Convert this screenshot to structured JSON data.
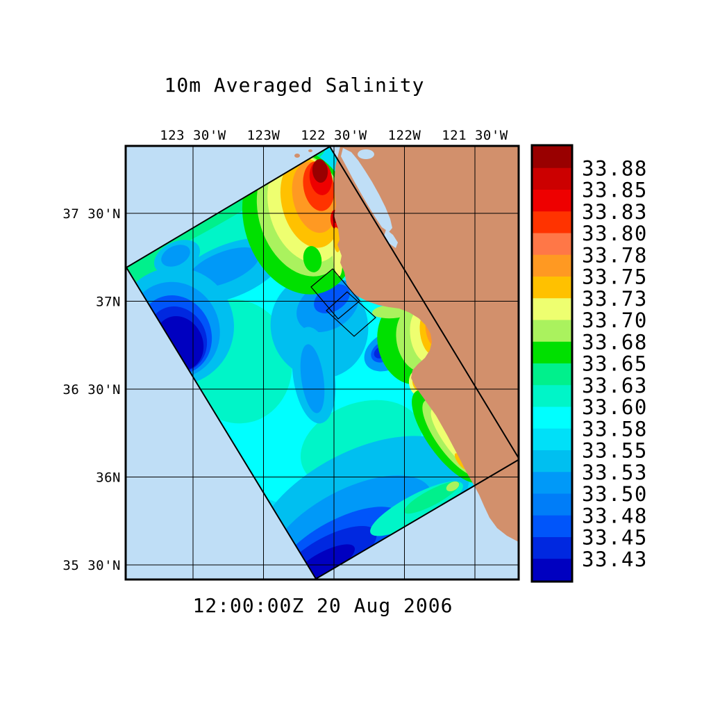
{
  "figure": {
    "title": "10m Averaged Salinity",
    "timestamp": "12:00:00Z  20 Aug 2006"
  },
  "axes": {
    "x_labels": [
      "123 30'W",
      "123W",
      "122 30'W",
      "122W",
      "121 30'W"
    ],
    "y_labels": [
      "37 30'N",
      "37N",
      "36 30'N",
      "36N",
      "35 30'N"
    ]
  },
  "colorbar": {
    "labels": [
      "33.88",
      "33.85",
      "33.83",
      "33.80",
      "33.78",
      "33.75",
      "33.73",
      "33.70",
      "33.68",
      "33.65",
      "33.63",
      "33.60",
      "33.58",
      "33.55",
      "33.53",
      "33.50",
      "33.48",
      "33.45",
      "33.43"
    ],
    "colors": [
      "#990000",
      "#cc0000",
      "#ee0000",
      "#ff3300",
      "#ff7747",
      "#ff9922",
      "#ffc100",
      "#eeff70",
      "#aaf25e",
      "#00e000",
      "#00f08c",
      "#00f5c8",
      "#00ffff",
      "#00e0f8",
      "#00bff0",
      "#0099f8",
      "#007df8",
      "#0055fa",
      "#0028e0",
      "#0000c0"
    ]
  },
  "colors": {
    "ocean": "#bfdef6",
    "land": "#d2906c",
    "frame": "#000000",
    "background": "#ffffff"
  },
  "chart_data": {
    "type": "heatmap",
    "title": "10m Averaged Salinity",
    "time_label": "12:00:00Z  20 Aug 2006",
    "x_ticks": [
      "123 30'W",
      "123W",
      "122 30'W",
      "122W",
      "121 30'W"
    ],
    "y_ticks": [
      "37 30'N",
      "37N",
      "36 30'N",
      "36N",
      "35 30'N"
    ],
    "colorbar_levels": [
      33.88,
      33.85,
      33.83,
      33.8,
      33.78,
      33.75,
      33.73,
      33.7,
      33.68,
      33.65,
      33.63,
      33.6,
      33.58,
      33.55,
      33.53,
      33.5,
      33.48,
      33.45,
      33.43
    ],
    "palette_high_to_low": [
      "#990000",
      "#cc0000",
      "#ee0000",
      "#ff3300",
      "#ff7747",
      "#ff9922",
      "#ffc100",
      "#eeff70",
      "#aaf25e",
      "#00e000",
      "#00f08c",
      "#00f5c8",
      "#00ffff",
      "#00e0f8",
      "#00bff0",
      "#0099f8",
      "#007df8",
      "#0055fa",
      "#0028e0",
      "#0000c0"
    ],
    "legend_position": "right",
    "grid": true,
    "notes": "Rotated rectangular model domain off the central California coast. High salinity (33.75-33.88) plume near San Francisco Bay mouth and along the coast at Monterey Bay and Big Sur; lowest salinity (33.43-33.50) in a patch near the western domain corner and along the southern portion of the domain; background mostly 33.55-33.63. Two small nested rotated domain outlines near Monterey Bay. Land shown tan, ocean outside domain light blue."
  }
}
